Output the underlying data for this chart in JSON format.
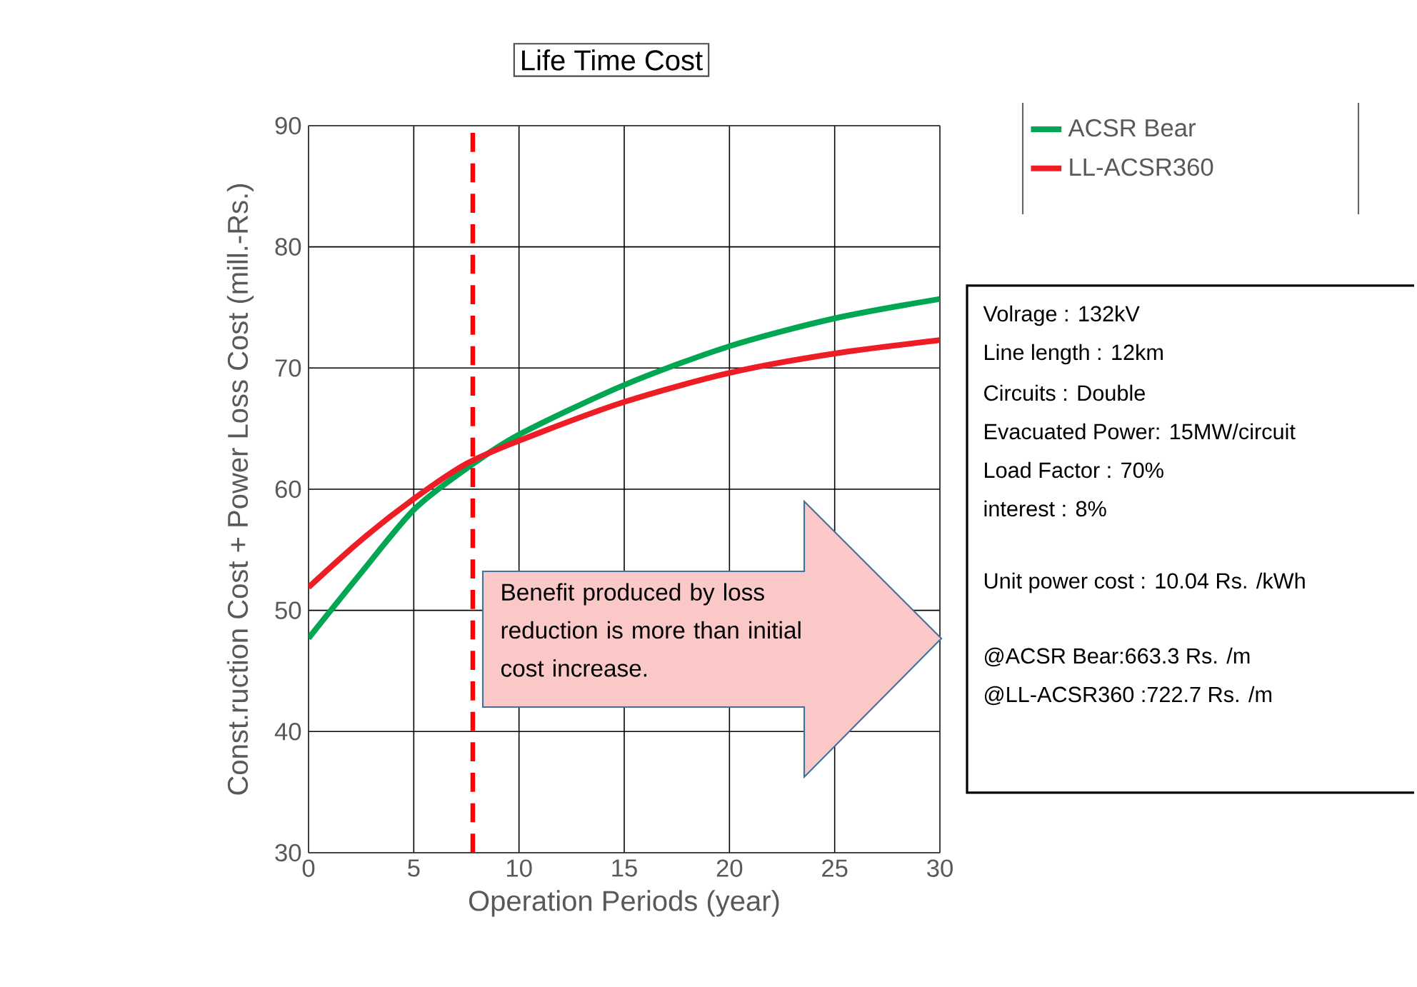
{
  "chart_data": {
    "type": "line",
    "title": "Life Time Cost",
    "xlabel": "Operation Periods (year)",
    "ylabel": "Const.ruction Cost + Power Loss Cost (mill.-Rs.)",
    "x": [
      0,
      2.5,
      5,
      7.5,
      10,
      15,
      20,
      25,
      30
    ],
    "series": [
      {
        "name": "ACSR Bear",
        "color": "#00a651",
        "values": [
          47.7,
          53.1,
          58.3,
          61.7,
          64.5,
          68.6,
          71.8,
          74.1,
          75.7
        ]
      },
      {
        "name": "LL-ACSR360",
        "color": "#ee1c25",
        "values": [
          51.9,
          55.8,
          59.2,
          62.1,
          64.0,
          67.2,
          69.6,
          71.2,
          72.3
        ]
      }
    ],
    "xlim": [
      0,
      30
    ],
    "ylim": [
      30,
      90
    ],
    "xticks": [
      0,
      5,
      10,
      15,
      20,
      25,
      30
    ],
    "yticks": [
      30,
      40,
      50,
      60,
      70,
      80,
      90
    ],
    "grid": true,
    "legend": "top right",
    "line_style": "solid",
    "ref_lines": [
      {
        "axis": "x",
        "value": 7.8,
        "color": "#ff0000",
        "line_style": "dashed"
      }
    ],
    "annotations": [
      "Benefit produced by loss reduction is  more than initial cost increase.",
      "Volrage : 132kV",
      "Line length : 12km",
      "Circuits : Double",
      "Evacuated Power: 15MW/circuit",
      "Load Factor  : 70%",
      "interest : 8%",
      "Unit power cost : 10.04 Rs. /kWh",
      "@ACSR Bear:663.3 Rs. /m",
      "@LL-ACSR360 :722.7 Rs. /m"
    ]
  }
}
